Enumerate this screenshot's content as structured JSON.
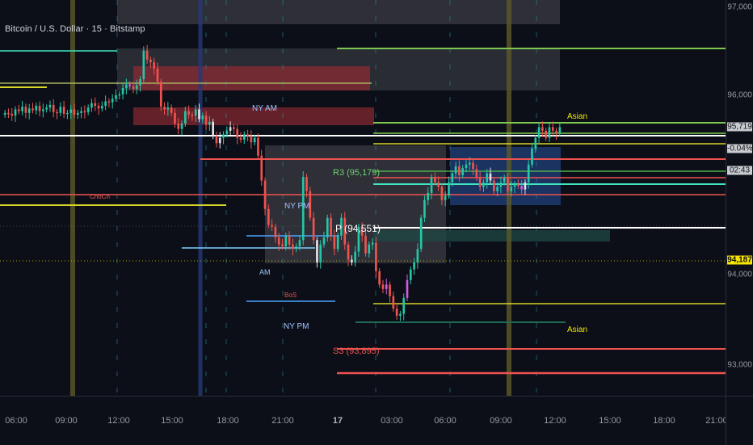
{
  "chart": {
    "title": "Bitcoin / U.S. Dollar · 15 · Bitstamp",
    "symbol": "BTCUSD",
    "exchange": "Bitstamp",
    "interval": "15"
  },
  "price_axis": {
    "ticks": [
      "97,000",
      "96,000",
      "94,000",
      "93,000"
    ],
    "labels": [
      {
        "name": "last-price-label",
        "text": "95,719",
        "bg": "#c8cbd2",
        "fg": "#111111"
      },
      {
        "name": "change-label",
        "text": "-0.04%",
        "bg": "#c8cbd2",
        "fg": "#111111"
      },
      {
        "name": "countdown-label",
        "text": "02:43",
        "bg": "#c8cbd2",
        "fg": "#111111"
      },
      {
        "name": "crosshair-price-label",
        "text": "94,187",
        "bg": "#f5e500",
        "fg": "#111111"
      }
    ]
  },
  "time_axis": {
    "ticks": [
      "06:00",
      "09:00",
      "12:00",
      "15:00",
      "18:00",
      "21:00",
      "17",
      "03:00",
      "06:00",
      "09:00",
      "12:00",
      "15:00",
      "18:00",
      "21:00"
    ]
  },
  "annotations": {
    "ny_am_1": "NY AM",
    "ny_pm_1": "NY PM",
    "am_small": "AM",
    "ny_pm_2": "NY PM",
    "bos": "BoS",
    "choch": "ChoCh",
    "asian_1": "Asian",
    "asian_2": "Asian",
    "r3": "R3 (95,179)",
    "pivot": "P (94,551)",
    "s3": "S3 (93,895)"
  },
  "chart_data": {
    "type": "candlestick",
    "ylim": [
      92700,
      97150
    ],
    "yticks": [
      97000,
      96000,
      94000,
      93000
    ],
    "levels": {
      "R3": 95179,
      "P": 94551,
      "S3": 93895,
      "last": 95719,
      "crosshair": 94187
    },
    "colors": {
      "up": "#26c6a6",
      "down": "#ef5350",
      "bull_pivot": "#ffffff",
      "magenta": "#d05ce3",
      "lime": "#7ec850",
      "yellow": "#d4d42a",
      "cyan": "#3fe6c0",
      "red": "#ef5350",
      "blue_box": "#1e3a6e"
    }
  }
}
